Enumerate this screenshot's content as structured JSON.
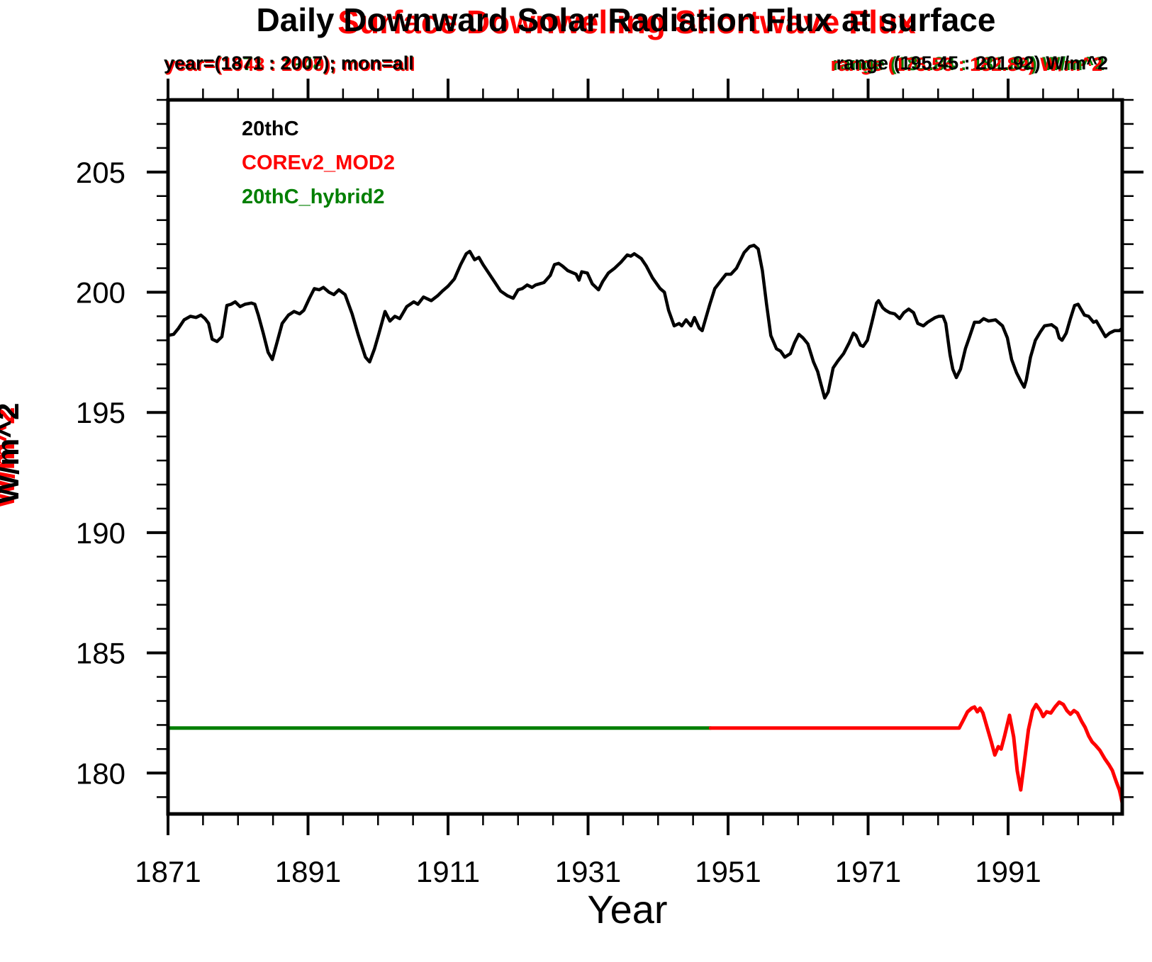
{
  "chart_data": {
    "type": "line",
    "title_black": "Daily Downward Solar Radiation Flux at surface",
    "title_red": "Surface Downwelling Shortwave Flux",
    "subtitle_left_black": "year=(1871 : 2007); mon=all",
    "subtitle_left_red": "year=(1948 : 2009); mon=all",
    "subtitle_left_green": "year=(1871 : 1948); mon=all",
    "subtitle_right_black": "range (195.45 : 201.92) W/m^2",
    "subtitle_right_red": "range (178.56 : 182.89) W/m^2",
    "subtitle_right_green": "range (181.84 : 181.84) W/m^2",
    "xlabel": "Year",
    "ylabel_black": "W/m^2",
    "ylabel_red": "W/m^2",
    "xlim": [
      1871,
      2007.3
    ],
    "ylim": [
      178.3,
      208.0
    ],
    "x_ticks_major": [
      1871,
      1891,
      1911,
      1931,
      1951,
      1971,
      1991
    ],
    "x_minor_start": 1876,
    "x_minor_step": 5,
    "y_ticks_major": [
      180,
      185,
      190,
      195,
      200,
      205
    ],
    "y_minor_start": 179,
    "y_minor_step": 1,
    "grid": false,
    "legend_position": "top-left-inside",
    "legend": [
      {
        "label": "20thC",
        "color": "#000000"
      },
      {
        "label": "COREv2_MOD2",
        "color": "#ff0000"
      },
      {
        "label": "20thC_hybrid2",
        "color": "#007f00"
      }
    ],
    "series": [
      {
        "name": "20thC_hybrid2",
        "color": "#007f00",
        "width": 5,
        "points": [
          [
            1871,
            181.87
          ],
          [
            1948.5,
            181.87
          ]
        ]
      },
      {
        "name": "COREv2_MOD2",
        "color": "#ff0000",
        "width": 5,
        "points": [
          [
            1948.5,
            181.87
          ],
          [
            1984,
            181.87
          ],
          [
            1984.6,
            182.2
          ],
          [
            1985.2,
            182.55
          ],
          [
            1985.8,
            182.7
          ],
          [
            1986.2,
            182.75
          ],
          [
            1986.6,
            182.55
          ],
          [
            1987,
            182.7
          ],
          [
            1987.4,
            182.5
          ],
          [
            1988,
            181.9
          ],
          [
            1988.6,
            181.3
          ],
          [
            1989.1,
            180.75
          ],
          [
            1989.6,
            181.1
          ],
          [
            1990,
            181.0
          ],
          [
            1990.5,
            181.55
          ],
          [
            1991.2,
            182.4
          ],
          [
            1991.8,
            181.5
          ],
          [
            1992.3,
            180.1
          ],
          [
            1992.8,
            179.3
          ],
          [
            1993.3,
            180.4
          ],
          [
            1993.9,
            181.8
          ],
          [
            1994.5,
            182.6
          ],
          [
            1995,
            182.85
          ],
          [
            1995.6,
            182.6
          ],
          [
            1996,
            182.35
          ],
          [
            1996.5,
            182.55
          ],
          [
            1997.1,
            182.5
          ],
          [
            1997.7,
            182.75
          ],
          [
            1998.3,
            182.95
          ],
          [
            1998.9,
            182.85
          ],
          [
            1999.4,
            182.6
          ],
          [
            1999.9,
            182.45
          ],
          [
            2000.4,
            182.6
          ],
          [
            2000.9,
            182.5
          ],
          [
            2001.5,
            182.15
          ],
          [
            2002,
            181.9
          ],
          [
            2002.5,
            181.55
          ],
          [
            2003,
            181.3
          ],
          [
            2003.5,
            181.15
          ],
          [
            2004.1,
            180.95
          ],
          [
            2004.8,
            180.6
          ],
          [
            2005.4,
            180.35
          ],
          [
            2005.9,
            180.1
          ],
          [
            2006.2,
            179.85
          ],
          [
            2006.5,
            179.6
          ],
          [
            2006.9,
            179.3
          ],
          [
            2007.1,
            179.05
          ],
          [
            2007.3,
            178.75
          ]
        ]
      },
      {
        "name": "20thC",
        "color": "#000000",
        "width": 4.5,
        "points": [
          [
            1871,
            198.2
          ],
          [
            1871.8,
            198.25
          ],
          [
            1872.5,
            198.5
          ],
          [
            1873.3,
            198.85
          ],
          [
            1874.2,
            199.0
          ],
          [
            1875,
            198.95
          ],
          [
            1875.7,
            199.05
          ],
          [
            1876.3,
            198.9
          ],
          [
            1876.8,
            198.7
          ],
          [
            1877.3,
            198.05
          ],
          [
            1878,
            197.95
          ],
          [
            1878.7,
            198.15
          ],
          [
            1879.4,
            199.45
          ],
          [
            1880,
            199.5
          ],
          [
            1880.6,
            199.6
          ],
          [
            1881.3,
            199.4
          ],
          [
            1882,
            199.5
          ],
          [
            1882.9,
            199.55
          ],
          [
            1883.4,
            199.5
          ],
          [
            1883.9,
            199.05
          ],
          [
            1884.6,
            198.3
          ],
          [
            1885.3,
            197.5
          ],
          [
            1885.9,
            197.2
          ],
          [
            1886.6,
            197.95
          ],
          [
            1887.3,
            198.7
          ],
          [
            1888.2,
            199.05
          ],
          [
            1889,
            199.2
          ],
          [
            1889.8,
            199.1
          ],
          [
            1890.4,
            199.25
          ],
          [
            1891.2,
            199.75
          ],
          [
            1891.9,
            200.15
          ],
          [
            1892.6,
            200.1
          ],
          [
            1893.2,
            200.2
          ],
          [
            1894,
            200.0
          ],
          [
            1894.7,
            199.9
          ],
          [
            1895.4,
            200.1
          ],
          [
            1896.3,
            199.9
          ],
          [
            1897.3,
            199.1
          ],
          [
            1898.2,
            198.2
          ],
          [
            1899.2,
            197.3
          ],
          [
            1899.8,
            197.1
          ],
          [
            1900.5,
            197.65
          ],
          [
            1901.1,
            198.25
          ],
          [
            1902,
            199.2
          ],
          [
            1902.7,
            198.8
          ],
          [
            1903.4,
            199.0
          ],
          [
            1904.1,
            198.9
          ],
          [
            1905.1,
            199.4
          ],
          [
            1906.1,
            199.6
          ],
          [
            1906.7,
            199.5
          ],
          [
            1907.5,
            199.8
          ],
          [
            1908.6,
            199.65
          ],
          [
            1909.5,
            199.85
          ],
          [
            1910.2,
            200.05
          ],
          [
            1911,
            200.25
          ],
          [
            1911.9,
            200.55
          ],
          [
            1912.8,
            201.15
          ],
          [
            1913.6,
            201.6
          ],
          [
            1914.1,
            201.7
          ],
          [
            1914.8,
            201.35
          ],
          [
            1915.4,
            201.45
          ],
          [
            1916,
            201.15
          ],
          [
            1916.8,
            200.8
          ],
          [
            1917.6,
            200.45
          ],
          [
            1918.5,
            200.05
          ],
          [
            1919.5,
            199.85
          ],
          [
            1920.3,
            199.75
          ],
          [
            1921,
            200.1
          ],
          [
            1921.6,
            200.15
          ],
          [
            1922.3,
            200.3
          ],
          [
            1923,
            200.2
          ],
          [
            1923.5,
            200.3
          ],
          [
            1924.7,
            200.4
          ],
          [
            1925.6,
            200.7
          ],
          [
            1926.2,
            201.15
          ],
          [
            1926.8,
            201.2
          ],
          [
            1927.3,
            201.1
          ],
          [
            1928.1,
            200.9
          ],
          [
            1929.3,
            200.75
          ],
          [
            1929.7,
            200.5
          ],
          [
            1930.1,
            200.85
          ],
          [
            1930.9,
            200.8
          ],
          [
            1931.6,
            200.35
          ],
          [
            1932.5,
            200.1
          ],
          [
            1933.1,
            200.45
          ],
          [
            1933.9,
            200.8
          ],
          [
            1934.8,
            201.0
          ],
          [
            1935.7,
            201.25
          ],
          [
            1936.6,
            201.55
          ],
          [
            1937.1,
            201.5
          ],
          [
            1937.6,
            201.6
          ],
          [
            1938.6,
            201.4
          ],
          [
            1939.3,
            201.1
          ],
          [
            1940.2,
            200.6
          ],
          [
            1941.3,
            200.15
          ],
          [
            1941.9,
            200.0
          ],
          [
            1942.5,
            199.25
          ],
          [
            1943.3,
            198.6
          ],
          [
            1944,
            198.7
          ],
          [
            1944.4,
            198.6
          ],
          [
            1945,
            198.85
          ],
          [
            1945.7,
            198.6
          ],
          [
            1946.2,
            198.95
          ],
          [
            1946.9,
            198.5
          ],
          [
            1947.3,
            198.4
          ],
          [
            1947.8,
            198.9
          ],
          [
            1948.4,
            199.5
          ],
          [
            1949.1,
            200.15
          ],
          [
            1949.9,
            200.45
          ],
          [
            1950.7,
            200.75
          ],
          [
            1951.4,
            200.75
          ],
          [
            1952.2,
            201.0
          ],
          [
            1953.3,
            201.65
          ],
          [
            1954.1,
            201.9
          ],
          [
            1954.7,
            201.95
          ],
          [
            1955.3,
            201.8
          ],
          [
            1955.9,
            200.9
          ],
          [
            1956.5,
            199.5
          ],
          [
            1957.1,
            198.2
          ],
          [
            1957.9,
            197.65
          ],
          [
            1958.5,
            197.55
          ],
          [
            1959.1,
            197.3
          ],
          [
            1959.9,
            197.45
          ],
          [
            1960.5,
            197.9
          ],
          [
            1961.1,
            198.25
          ],
          [
            1961.7,
            198.1
          ],
          [
            1962.4,
            197.85
          ],
          [
            1963.2,
            197.1
          ],
          [
            1963.8,
            196.7
          ],
          [
            1964.2,
            196.25
          ],
          [
            1964.8,
            195.6
          ],
          [
            1965.3,
            195.85
          ],
          [
            1966,
            196.85
          ],
          [
            1966.7,
            197.15
          ],
          [
            1967.5,
            197.45
          ],
          [
            1968.3,
            197.9
          ],
          [
            1968.9,
            198.3
          ],
          [
            1969.3,
            198.2
          ],
          [
            1969.9,
            197.8
          ],
          [
            1970.3,
            197.75
          ],
          [
            1970.9,
            198.0
          ],
          [
            1971.5,
            198.7
          ],
          [
            1972.2,
            199.55
          ],
          [
            1972.5,
            199.65
          ],
          [
            1973.1,
            199.35
          ],
          [
            1973.5,
            199.25
          ],
          [
            1974.1,
            199.15
          ],
          [
            1974.8,
            199.1
          ],
          [
            1975.5,
            198.9
          ],
          [
            1976.1,
            199.15
          ],
          [
            1976.8,
            199.3
          ],
          [
            1977.5,
            199.15
          ],
          [
            1978.1,
            198.7
          ],
          [
            1978.9,
            198.6
          ],
          [
            1979.5,
            198.75
          ],
          [
            1980.6,
            198.95
          ],
          [
            1981.1,
            199.0
          ],
          [
            1981.7,
            199.0
          ],
          [
            1982.1,
            198.7
          ],
          [
            1982.7,
            197.4
          ],
          [
            1983.1,
            196.8
          ],
          [
            1983.6,
            196.45
          ],
          [
            1984.2,
            196.8
          ],
          [
            1984.9,
            197.65
          ],
          [
            1985.5,
            198.15
          ],
          [
            1986.2,
            198.75
          ],
          [
            1986.9,
            198.75
          ],
          [
            1987.5,
            198.9
          ],
          [
            1988.2,
            198.8
          ],
          [
            1989.2,
            198.85
          ],
          [
            1990.2,
            198.6
          ],
          [
            1990.9,
            198.1
          ],
          [
            1991.5,
            197.2
          ],
          [
            1992.2,
            196.65
          ],
          [
            1992.9,
            196.25
          ],
          [
            1993.3,
            196.05
          ],
          [
            1993.6,
            196.35
          ],
          [
            1994.2,
            197.3
          ],
          [
            1994.9,
            198.0
          ],
          [
            1995.6,
            198.35
          ],
          [
            1996.2,
            198.6
          ],
          [
            1997.2,
            198.65
          ],
          [
            1997.9,
            198.5
          ],
          [
            1998.3,
            198.1
          ],
          [
            1998.7,
            198.0
          ],
          [
            1999.3,
            198.3
          ],
          [
            1999.9,
            198.9
          ],
          [
            2000.5,
            199.45
          ],
          [
            2001,
            199.5
          ],
          [
            2001.3,
            199.35
          ],
          [
            2001.9,
            199.05
          ],
          [
            2002.5,
            199.0
          ],
          [
            2003.2,
            198.75
          ],
          [
            2003.6,
            198.8
          ],
          [
            2004.2,
            198.5
          ],
          [
            2004.9,
            198.15
          ],
          [
            2005.5,
            198.3
          ],
          [
            2006.2,
            198.4
          ],
          [
            2006.9,
            198.4
          ],
          [
            2007.3,
            198.5
          ]
        ]
      }
    ]
  },
  "colors": {
    "black": "#000000",
    "red": "#ff0000",
    "green": "#007f00",
    "background": "#ffffff"
  }
}
